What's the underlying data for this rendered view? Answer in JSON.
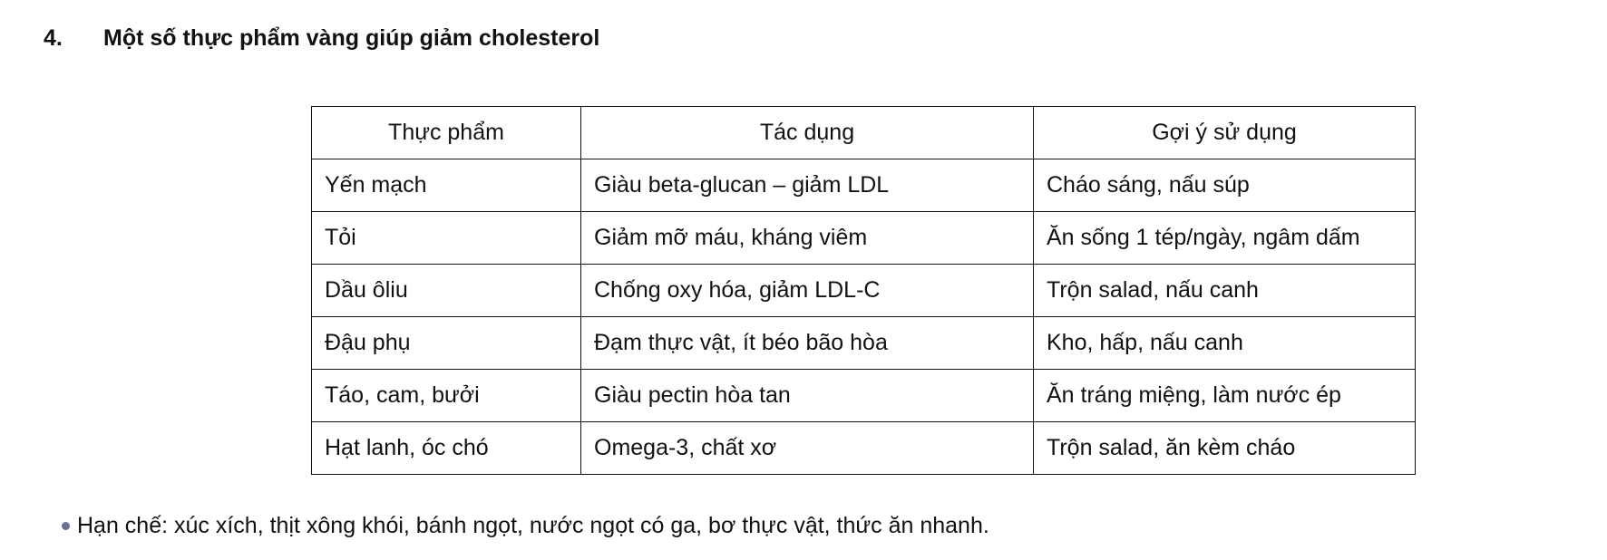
{
  "heading": {
    "number": "4.",
    "title": "Một số thực phẩm vàng giúp giảm cholesterol"
  },
  "table": {
    "headers": [
      "Thực phẩm",
      "Tác dụng",
      "Gợi ý sử dụng"
    ],
    "rows": [
      [
        "Yến mạch",
        "Giàu beta-glucan – giảm LDL",
        "Cháo sáng, nấu súp"
      ],
      [
        "Tỏi",
        "Giảm mỡ máu, kháng viêm",
        "Ăn sống 1 tép/ngày, ngâm dấm"
      ],
      [
        "Dầu ôliu",
        "Chống oxy hóa, giảm LDL-C",
        "Trộn salad, nấu canh"
      ],
      [
        "Đậu phụ",
        "Đạm thực vật, ít béo bão hòa",
        "Kho, hấp, nấu canh"
      ],
      [
        "Táo, cam, bưởi",
        "Giàu pectin hòa tan",
        "Ăn tráng miệng, làm nước ép"
      ],
      [
        "Hạt lanh, óc chó",
        "Omega-3, chất xơ",
        "Trộn salad, ăn kèm cháo"
      ]
    ]
  },
  "note": {
    "text": "Hạn chế: xúc xích, thịt xông khói, bánh ngọt, nước ngọt có ga, bơ thực vật, thức ăn nhanh.",
    "bullet_color": "#6b6f96"
  }
}
